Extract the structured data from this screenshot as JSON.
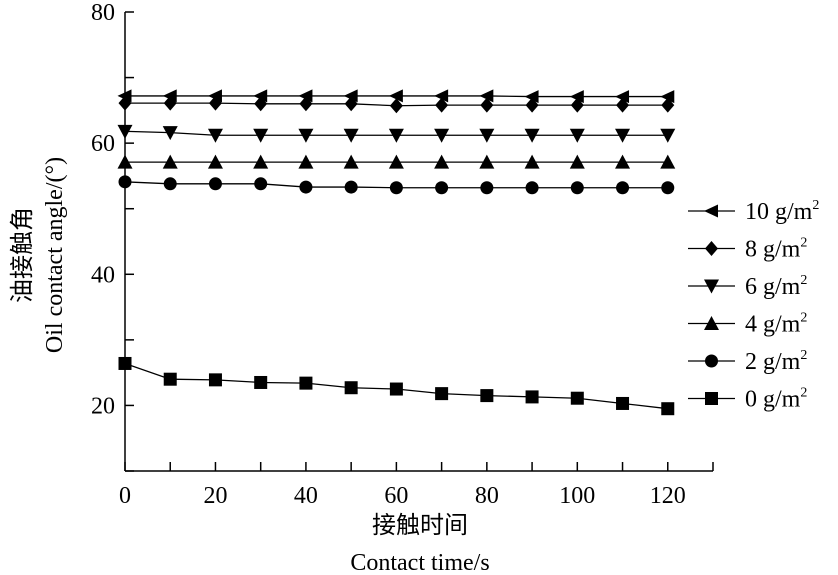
{
  "chart_data": {
    "type": "line",
    "xlabel_cn": "接触时间",
    "xlabel": "Contact time/s",
    "ylabel_cn": "油接触角",
    "ylabel": "Oil contact angle/(°)",
    "xlim": [
      0,
      130
    ],
    "ylim": [
      10,
      80
    ],
    "xticks": [
      0,
      20,
      40,
      60,
      80,
      100,
      120
    ],
    "yticks": [
      20,
      40,
      60,
      80
    ],
    "legend_position": "right",
    "x": [
      0,
      10,
      20,
      30,
      40,
      50,
      60,
      70,
      80,
      90,
      100,
      110,
      120
    ],
    "series": [
      {
        "name": "10 g/m",
        "sup": "2",
        "marker": "triangle-left",
        "values": [
          67.2,
          67.2,
          67.2,
          67.2,
          67.2,
          67.2,
          67.2,
          67.2,
          67.2,
          67.1,
          67.1,
          67.1,
          67.1
        ]
      },
      {
        "name": "8 g/m",
        "sup": "2",
        "marker": "diamond",
        "values": [
          66.1,
          66.1,
          66.1,
          66.0,
          66.0,
          66.0,
          65.7,
          65.8,
          65.8,
          65.8,
          65.8,
          65.8,
          65.8
        ]
      },
      {
        "name": "6 g/m",
        "sup": "2",
        "marker": "triangle-down",
        "values": [
          61.8,
          61.6,
          61.2,
          61.2,
          61.2,
          61.2,
          61.2,
          61.2,
          61.2,
          61.2,
          61.2,
          61.2,
          61.2
        ]
      },
      {
        "name": "4 g/m",
        "sup": "2",
        "marker": "triangle-up",
        "values": [
          57.1,
          57.1,
          57.1,
          57.1,
          57.1,
          57.1,
          57.1,
          57.1,
          57.1,
          57.1,
          57.1,
          57.1,
          57.1
        ]
      },
      {
        "name": "2 g/m",
        "sup": "2",
        "marker": "circle",
        "values": [
          54.1,
          53.8,
          53.8,
          53.8,
          53.3,
          53.3,
          53.2,
          53.2,
          53.2,
          53.2,
          53.2,
          53.2,
          53.2
        ]
      },
      {
        "name": "0 g/m",
        "sup": "2",
        "marker": "square",
        "values": [
          26.4,
          24.0,
          23.9,
          23.5,
          23.4,
          22.7,
          22.5,
          21.8,
          21.5,
          21.3,
          21.1,
          20.3,
          19.5
        ]
      }
    ]
  }
}
